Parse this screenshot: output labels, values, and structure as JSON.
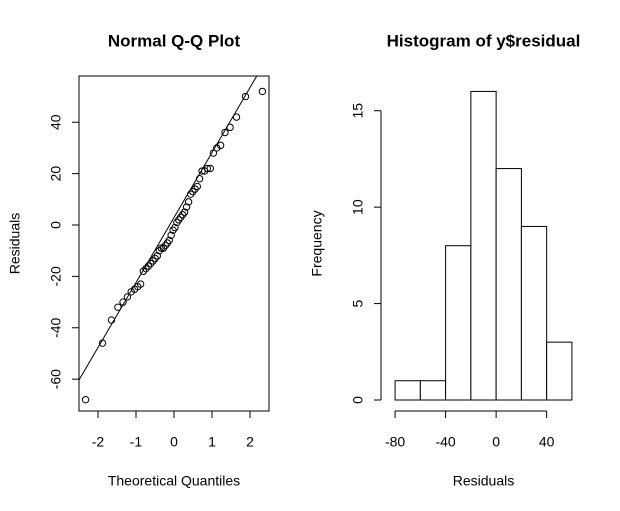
{
  "chart_data": [
    {
      "type": "scatter",
      "title": "Normal Q-Q Plot",
      "x_label": "Theoretical Quantiles",
      "y_label": "Residuals",
      "x": [
        -2.326,
        -1.881,
        -1.645,
        -1.476,
        -1.341,
        -1.227,
        -1.126,
        -1.036,
        -0.954,
        -0.878,
        -0.806,
        -0.739,
        -0.674,
        -0.613,
        -0.553,
        -0.496,
        -0.44,
        -0.385,
        -0.332,
        -0.279,
        -0.228,
        -0.176,
        -0.126,
        -0.075,
        -0.025,
        0.025,
        0.075,
        0.126,
        0.176,
        0.228,
        0.279,
        0.332,
        0.385,
        0.44,
        0.496,
        0.553,
        0.613,
        0.674,
        0.739,
        0.806,
        0.878,
        0.954,
        1.036,
        1.126,
        1.227,
        1.341,
        1.476,
        1.645,
        1.881,
        2.326
      ],
      "values": [
        -68,
        -46,
        -37,
        -32,
        -30,
        -28,
        -26,
        -25,
        -24,
        -23,
        -18,
        -17,
        -16,
        -15,
        -14,
        -13,
        -12,
        -10,
        -9,
        -9,
        -8,
        -7,
        -6,
        -4,
        -2,
        -1,
        1,
        2,
        3,
        4,
        5,
        7,
        9,
        12,
        13,
        14,
        15,
        18,
        21,
        21,
        22,
        22,
        28,
        30,
        31,
        36,
        38,
        42,
        50,
        52
      ],
      "reference_line": {
        "intercept": 2.9,
        "slope": 25.3
      },
      "xlim": [
        -2.5,
        2.5
      ],
      "xticks": [
        -2,
        -1,
        0,
        1,
        2
      ],
      "ylim": [
        -72.4,
        58
      ],
      "yticks": [
        -60,
        -40,
        -20,
        0,
        20,
        40
      ]
    },
    {
      "type": "histogram",
      "title": "Histogram of y$residual",
      "x_label": "Residuals",
      "y_label": "Frequency",
      "bins": [
        -80,
        -60,
        -40,
        -20,
        0,
        20,
        40,
        60
      ],
      "counts": [
        1,
        1,
        8,
        16,
        12,
        9,
        3
      ],
      "xlim": [
        -85.6,
        65.6
      ],
      "xticks": [
        -80,
        -40,
        0,
        40
      ],
      "ylim": [
        -0.57,
        16.8
      ],
      "yticks": [
        0,
        5,
        10,
        15
      ]
    }
  ]
}
